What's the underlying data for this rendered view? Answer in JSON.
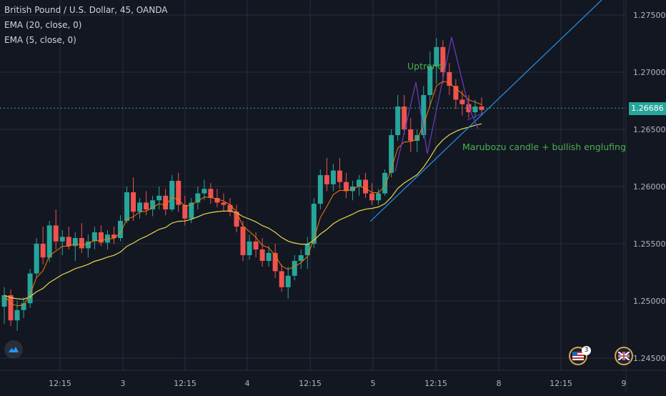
{
  "legend": {
    "symbol": "British Pound / U.S. Dollar, 45, OANDA",
    "ema20": "EMA (20, close, 0)",
    "ema5": "EMA (5, close, 0)"
  },
  "current_price": "1.26686",
  "annotations": {
    "uptrend": "Uptrend",
    "pattern": "Marubozu candle + bullish englufing"
  },
  "colors": {
    "background": "#131722",
    "grid": "#2a2e39",
    "up_candle": "#26a69a",
    "down_candle": "#ef5350",
    "ema20": "#e6d84a",
    "ema5": "#f57c00",
    "trendline": "#2196f3",
    "pattern_lines": "#673ab7",
    "annotation_text": "#4caf50"
  },
  "event_badge": "3",
  "icons": [
    "tradingview-logo-icon",
    "us-flag-event-icon",
    "uk-flag-event-icon"
  ],
  "chart_data": {
    "type": "candlestick",
    "title": "British Pound / U.S. Dollar, 45, OANDA",
    "y_ticks": [
      "1.27500",
      "1.27000",
      "1.26500",
      "1.26000",
      "1.25500",
      "1.25000",
      "1.24500"
    ],
    "ylim": [
      1.2445,
      1.2765
    ],
    "x_ticks": [
      "12:15",
      "3",
      "12:15",
      "4",
      "12:15",
      "5",
      "12:15",
      "8",
      "12:15",
      "9"
    ],
    "series": [
      {
        "name": "EMA (20, close, 0)",
        "style": "line"
      },
      {
        "name": "EMA (5, close, 0)",
        "style": "line"
      }
    ],
    "candles": [
      [
        1.2495,
        1.2512,
        1.248,
        1.2505
      ],
      [
        1.2505,
        1.251,
        1.2478,
        1.2483
      ],
      [
        1.2483,
        1.25,
        1.2474,
        1.2492
      ],
      [
        1.2492,
        1.2503,
        1.2485,
        1.2498
      ],
      [
        1.2498,
        1.2528,
        1.2494,
        1.2524
      ],
      [
        1.2524,
        1.2555,
        1.252,
        1.255
      ],
      [
        1.255,
        1.2565,
        1.2532,
        1.2538
      ],
      [
        1.2538,
        1.257,
        1.2534,
        1.2566
      ],
      [
        1.2566,
        1.258,
        1.2545,
        1.2552
      ],
      [
        1.2552,
        1.2562,
        1.254,
        1.2556
      ],
      [
        1.2556,
        1.2565,
        1.2545,
        1.2548
      ],
      [
        1.2548,
        1.256,
        1.2535,
        1.2555
      ],
      [
        1.2555,
        1.2568,
        1.2542,
        1.2546
      ],
      [
        1.2546,
        1.2558,
        1.2538,
        1.2552
      ],
      [
        1.2552,
        1.2565,
        1.2545,
        1.256
      ],
      [
        1.256,
        1.2566,
        1.2548,
        1.2551
      ],
      [
        1.2551,
        1.2562,
        1.2545,
        1.2558
      ],
      [
        1.2558,
        1.2565,
        1.255,
        1.2555
      ],
      [
        1.2555,
        1.2575,
        1.2552,
        1.257
      ],
      [
        1.257,
        1.26,
        1.2568,
        1.2595
      ],
      [
        1.2595,
        1.2608,
        1.257,
        1.2578
      ],
      [
        1.2578,
        1.259,
        1.2572,
        1.2586
      ],
      [
        1.2586,
        1.2596,
        1.2575,
        1.258
      ],
      [
        1.258,
        1.2592,
        1.2574,
        1.2588
      ],
      [
        1.2588,
        1.26,
        1.258,
        1.2592
      ],
      [
        1.2592,
        1.2598,
        1.2575,
        1.258
      ],
      [
        1.258,
        1.261,
        1.2578,
        1.2605
      ],
      [
        1.2605,
        1.2612,
        1.2578,
        1.2584
      ],
      [
        1.2584,
        1.2592,
        1.2566,
        1.2572
      ],
      [
        1.2572,
        1.259,
        1.2568,
        1.2586
      ],
      [
        1.2586,
        1.26,
        1.258,
        1.2594
      ],
      [
        1.2594,
        1.2606,
        1.2588,
        1.2598
      ],
      [
        1.2598,
        1.2603,
        1.2585,
        1.259
      ],
      [
        1.259,
        1.2598,
        1.2582,
        1.2586
      ],
      [
        1.2586,
        1.2594,
        1.2578,
        1.2584
      ],
      [
        1.2584,
        1.259,
        1.2574,
        1.2578
      ],
      [
        1.2578,
        1.2584,
        1.256,
        1.2565
      ],
      [
        1.2565,
        1.257,
        1.2535,
        1.254
      ],
      [
        1.254,
        1.2558,
        1.2536,
        1.2552
      ],
      [
        1.2552,
        1.256,
        1.2538,
        1.2545
      ],
      [
        1.2545,
        1.2555,
        1.253,
        1.2535
      ],
      [
        1.2535,
        1.2548,
        1.253,
        1.2542
      ],
      [
        1.2542,
        1.255,
        1.252,
        1.2526
      ],
      [
        1.2526,
        1.2532,
        1.2508,
        1.2512
      ],
      [
        1.2512,
        1.253,
        1.2502,
        1.2522
      ],
      [
        1.2522,
        1.254,
        1.2518,
        1.2535
      ],
      [
        1.2535,
        1.2545,
        1.2528,
        1.254
      ],
      [
        1.254,
        1.2556,
        1.2528,
        1.255
      ],
      [
        1.255,
        1.259,
        1.2546,
        1.2585
      ],
      [
        1.2585,
        1.2615,
        1.258,
        1.261
      ],
      [
        1.261,
        1.2625,
        1.2596,
        1.2602
      ],
      [
        1.2602,
        1.262,
        1.2596,
        1.2614
      ],
      [
        1.2614,
        1.2625,
        1.2598,
        1.2604
      ],
      [
        1.2604,
        1.2612,
        1.259,
        1.2596
      ],
      [
        1.2596,
        1.2605,
        1.2588,
        1.26
      ],
      [
        1.26,
        1.261,
        1.2592,
        1.2606
      ],
      [
        1.2606,
        1.2612,
        1.259,
        1.2594
      ],
      [
        1.2594,
        1.2603,
        1.2584,
        1.2588
      ],
      [
        1.2588,
        1.2598,
        1.2584,
        1.2594
      ],
      [
        1.2594,
        1.2615,
        1.2592,
        1.2612
      ],
      [
        1.2612,
        1.265,
        1.2608,
        1.2645
      ],
      [
        1.2645,
        1.268,
        1.264,
        1.267
      ],
      [
        1.267,
        1.268,
        1.2645,
        1.265
      ],
      [
        1.265,
        1.266,
        1.263,
        1.264
      ],
      [
        1.264,
        1.265,
        1.263,
        1.2645
      ],
      [
        1.2645,
        1.2688,
        1.2642,
        1.268
      ],
      [
        1.268,
        1.2718,
        1.267,
        1.2705
      ],
      [
        1.2705,
        1.273,
        1.269,
        1.2722
      ],
      [
        1.2722,
        1.2728,
        1.269,
        1.27
      ],
      [
        1.27,
        1.2708,
        1.268,
        1.2688
      ],
      [
        1.2688,
        1.2694,
        1.2668,
        1.2676
      ],
      [
        1.2676,
        1.2684,
        1.2662,
        1.2672
      ],
      [
        1.2672,
        1.268,
        1.266,
        1.2665
      ],
      [
        1.2665,
        1.2676,
        1.266,
        1.267
      ],
      [
        1.267,
        1.2678,
        1.2662,
        1.2667
      ]
    ]
  }
}
